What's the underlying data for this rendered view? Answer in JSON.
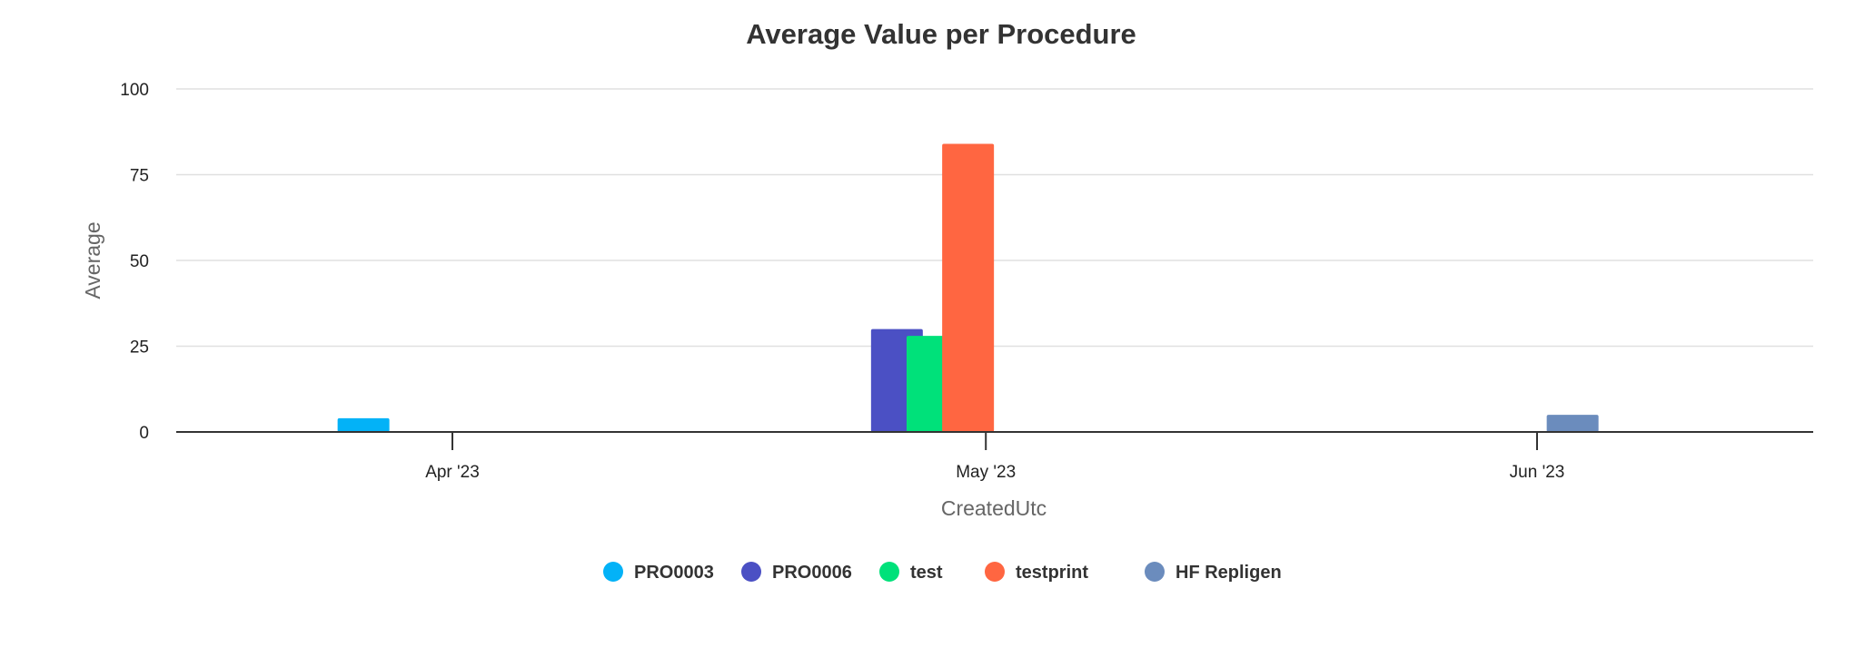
{
  "chart_data": {
    "type": "bar",
    "title": "Average Value per Procedure",
    "xlabel": "CreatedUtc",
    "ylabel": "Average",
    "ylim": [
      0,
      100
    ],
    "yticks": [
      "0",
      "25",
      "50",
      "75",
      "100"
    ],
    "x_ticks": [
      "Apr '23",
      "May '23",
      "Jun '23"
    ],
    "grid": true,
    "legend_position": "bottom",
    "series": [
      {
        "name": "PRO0003",
        "color": "#03b2f7",
        "points": [
          {
            "x": "2023-03-27",
            "y": 4
          }
        ]
      },
      {
        "name": "PRO0006",
        "color": "#4b50c4",
        "points": [
          {
            "x": "2023-04-26",
            "y": 30
          }
        ]
      },
      {
        "name": "test",
        "color": "#00e17a",
        "points": [
          {
            "x": "2023-04-28",
            "y": 28
          }
        ]
      },
      {
        "name": "testprint",
        "color": "#ff6641",
        "points": [
          {
            "x": "2023-04-30",
            "y": 84
          }
        ]
      },
      {
        "name": "HF Repligen",
        "color": "#6b8cbd",
        "points": [
          {
            "x": "2023-06-03",
            "y": 5
          }
        ]
      }
    ]
  }
}
